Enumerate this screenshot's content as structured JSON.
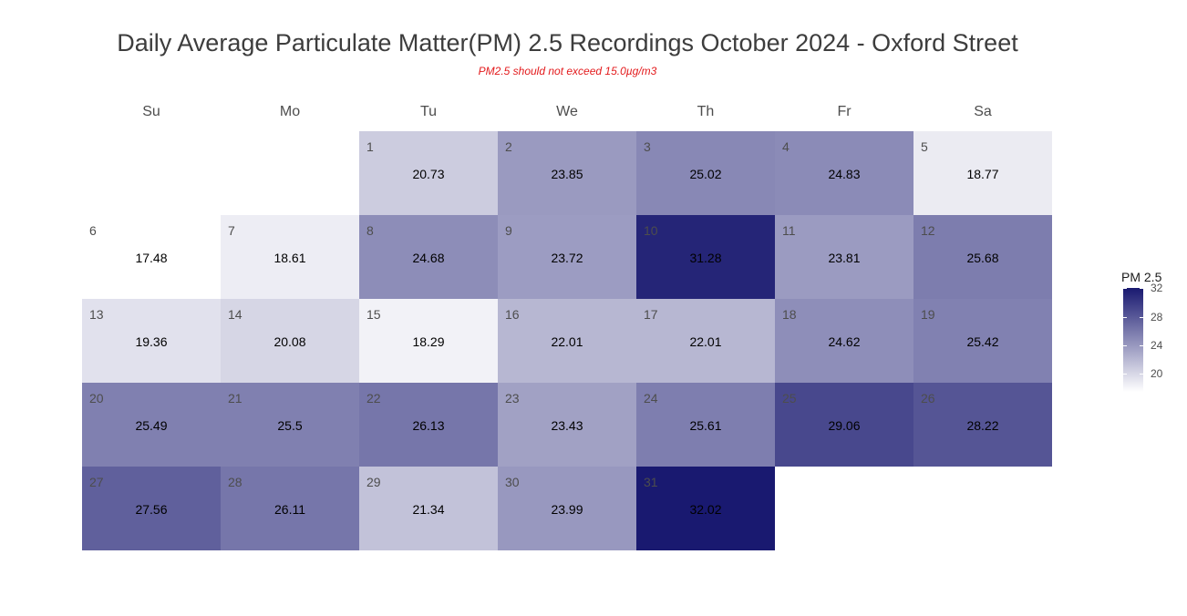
{
  "title": "Daily Average Particulate Matter(PM) 2.5 Recordings October 2024 -  Oxford Street",
  "subtitle": "PM2.5 should not exceed 15.0µg/m3",
  "chart_data": {
    "type": "heatmap",
    "title": "Daily Average Particulate Matter(PM) 2.5 Recordings October 2024 -  Oxford Street",
    "subtitle": "PM2.5 should not exceed 15.0µg/m3",
    "weekdays": [
      "Su",
      "Mo",
      "Tu",
      "We",
      "Th",
      "Fr",
      "Sa"
    ],
    "month_start_weekday": 2,
    "days": [
      1,
      2,
      3,
      4,
      5,
      6,
      7,
      8,
      9,
      10,
      11,
      12,
      13,
      14,
      15,
      16,
      17,
      18,
      19,
      20,
      21,
      22,
      23,
      24,
      25,
      26,
      27,
      28,
      29,
      30,
      31
    ],
    "values": [
      20.73,
      23.85,
      25.02,
      24.83,
      18.77,
      17.48,
      18.61,
      24.68,
      23.72,
      31.28,
      23.81,
      25.68,
      19.36,
      20.08,
      18.29,
      22.01,
      22.01,
      24.62,
      25.42,
      25.49,
      25.5,
      26.13,
      23.43,
      25.61,
      29.06,
      28.22,
      27.56,
      26.11,
      21.34,
      23.99,
      32.02
    ],
    "legend": {
      "title": "PM 2.5",
      "ticks": [
        20,
        24,
        28,
        32
      ],
      "range": [
        17.48,
        32.02
      ],
      "color_low": "#ffffff",
      "color_high": "#191970"
    }
  }
}
